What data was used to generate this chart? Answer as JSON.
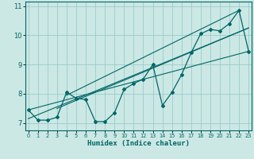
{
  "title": "",
  "xlabel": "Humidex (Indice chaleur)",
  "ylabel": "",
  "bg_color": "#cce8e4",
  "grid_color": "#99cccc",
  "line_color": "#006666",
  "x_ticks": [
    0,
    1,
    2,
    3,
    4,
    5,
    6,
    7,
    8,
    9,
    10,
    11,
    12,
    13,
    14,
    15,
    16,
    17,
    18,
    19,
    20,
    21,
    22,
    23
  ],
  "y_ticks": [
    7,
    8,
    9,
    10,
    11
  ],
  "xlim": [
    -0.3,
    23.3
  ],
  "ylim": [
    6.75,
    11.15
  ],
  "data_x": [
    0,
    1,
    2,
    3,
    4,
    5,
    6,
    7,
    8,
    9,
    10,
    11,
    12,
    13,
    14,
    15,
    16,
    17,
    18,
    19,
    20,
    21,
    22,
    23
  ],
  "data_y": [
    7.45,
    7.1,
    7.1,
    7.2,
    8.05,
    7.85,
    7.8,
    7.05,
    7.05,
    7.35,
    8.15,
    8.35,
    8.5,
    9.0,
    7.6,
    8.05,
    8.65,
    9.4,
    10.05,
    10.2,
    10.15,
    10.4,
    10.85,
    9.45
  ],
  "trend1_x": [
    0,
    23
  ],
  "trend1_y": [
    7.45,
    9.45
  ],
  "trend2_x": [
    0,
    23
  ],
  "trend2_y": [
    7.15,
    10.25
  ],
  "trend3_x": [
    3,
    23
  ],
  "trend3_y": [
    7.5,
    10.25
  ],
  "trend4_x": [
    4,
    22
  ],
  "trend4_y": [
    7.95,
    10.85
  ]
}
